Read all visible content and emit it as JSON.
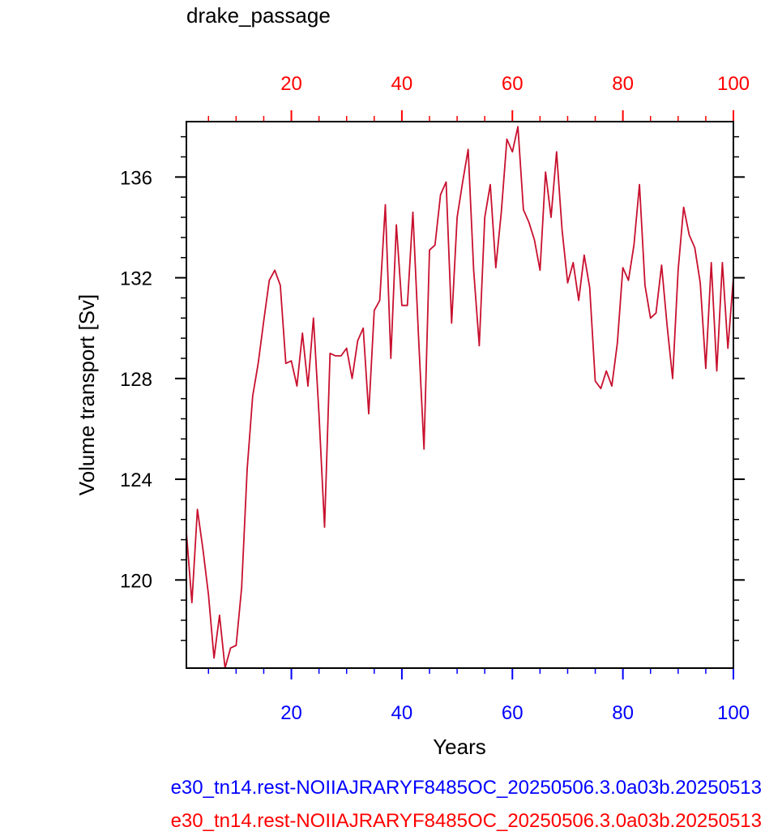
{
  "chart_data": {
    "type": "line",
    "title": "drake_passage",
    "xlabel": "Years",
    "ylabel": "Volume transport [Sv]",
    "xlim": [
      1,
      100
    ],
    "ylim": [
      116.5,
      138.2
    ],
    "x_ticks": [
      20,
      40,
      60,
      80,
      100
    ],
    "y_ticks": [
      120,
      124,
      128,
      132,
      136
    ],
    "x_tick_labels": [
      "20",
      "40",
      "60",
      "80",
      "100"
    ],
    "y_tick_labels": [
      "120",
      "124",
      "128",
      "132",
      "136"
    ],
    "grid": false,
    "x_axis_colors": {
      "bottom": "#0000ff",
      "top": "#ff0000"
    },
    "series": [
      {
        "color": "#c8102e",
        "x": [
          1,
          2,
          3,
          4,
          5,
          6,
          7,
          8,
          9,
          10,
          11,
          12,
          13,
          14,
          15,
          16,
          17,
          18,
          19,
          20,
          21,
          22,
          23,
          24,
          25,
          26,
          27,
          28,
          29,
          30,
          31,
          32,
          33,
          34,
          35,
          36,
          37,
          38,
          39,
          40,
          41,
          42,
          43,
          44,
          45,
          46,
          47,
          48,
          49,
          50,
          51,
          52,
          53,
          54,
          55,
          56,
          57,
          58,
          59,
          60,
          61,
          62,
          63,
          64,
          65,
          66,
          67,
          68,
          69,
          70,
          71,
          72,
          73,
          74,
          75,
          76,
          77,
          78,
          79,
          80,
          81,
          82,
          83,
          84,
          85,
          86,
          87,
          88,
          89,
          90,
          91,
          92,
          93,
          94,
          95,
          96,
          97,
          98,
          99,
          100
        ],
        "values": [
          121.9,
          119.1,
          122.8,
          121.2,
          119.4,
          116.9,
          118.6,
          116.5,
          117.3,
          117.4,
          119.7,
          124.4,
          127.3,
          128.6,
          130.3,
          131.9,
          132.3,
          131.7,
          128.6,
          128.7,
          127.7,
          129.8,
          127.7,
          130.4,
          126.6,
          122.1,
          129.0,
          128.9,
          128.9,
          129.2,
          128.0,
          129.5,
          130.0,
          126.6,
          130.7,
          131.1,
          134.9,
          128.8,
          134.1,
          130.9,
          130.9,
          134.6,
          129.7,
          125.2,
          133.1,
          133.3,
          135.3,
          135.8,
          130.2,
          134.4,
          135.8,
          137.1,
          132.3,
          129.3,
          134.4,
          135.7,
          132.4,
          134.6,
          137.5,
          137.0,
          138.0,
          134.7,
          134.2,
          133.5,
          132.3,
          136.2,
          134.4,
          137.0,
          133.9,
          131.8,
          132.6,
          131.1,
          132.9,
          131.6,
          127.9,
          127.6,
          128.3,
          127.7,
          129.4,
          132.4,
          131.9,
          133.3,
          135.7,
          131.7,
          130.4,
          130.6,
          132.5,
          130.1,
          128.0,
          132.3,
          134.8,
          133.7,
          133.2,
          131.8,
          128.4,
          132.6,
          128.3,
          132.6,
          129.2,
          132.0
        ]
      }
    ]
  },
  "footer": {
    "case_line_1": "e30_tn14.rest-NOIIAJRARYF8485OC_20250506.3.0a03b.20250513",
    "case_line_2": "e30_tn14.rest-NOIIAJRARYF8485OC_20250506.3.0a03b.20250513",
    "case_line_1_color": "#0000ff",
    "case_line_2_color": "#ff0000"
  }
}
